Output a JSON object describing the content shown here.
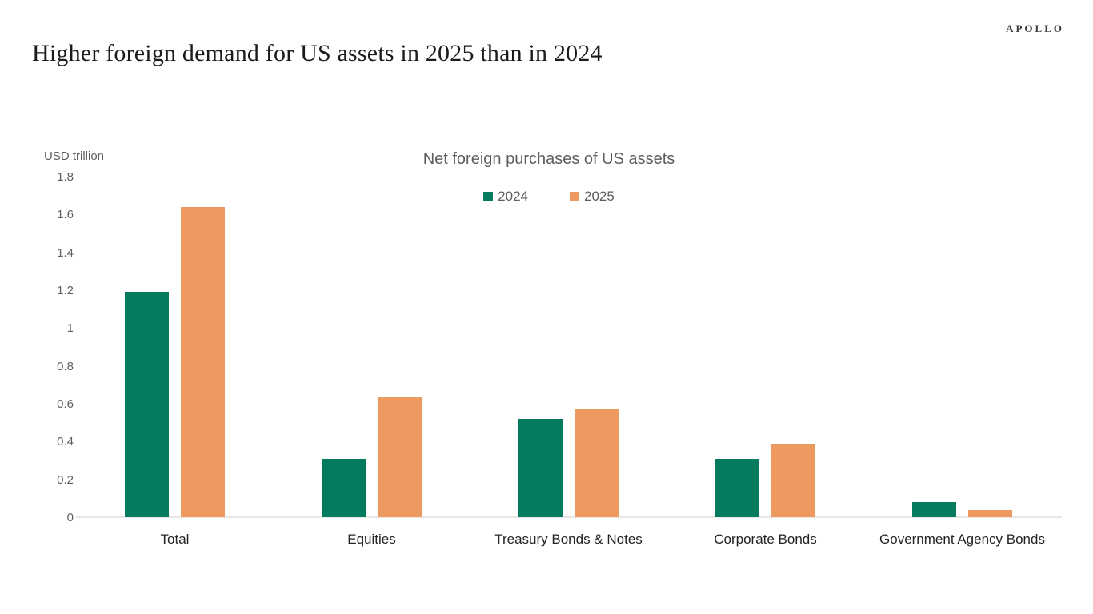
{
  "brand": {
    "logo": "APOLLO"
  },
  "header": {
    "title": "Higher foreign demand for US assets in 2025 than in 2024"
  },
  "chart_data": {
    "type": "bar",
    "title": "Net foreign purchases of US assets",
    "unit_label": "USD trillion",
    "categories": [
      "Total",
      "Equities",
      "Treasury Bonds & Notes",
      "Corporate Bonds",
      "Government Agency Bonds"
    ],
    "series": [
      {
        "name": "2024",
        "color": "#047a5e",
        "values": [
          1.19,
          0.31,
          0.52,
          0.31,
          0.08
        ]
      },
      {
        "name": "2025",
        "color": "#ec9a60",
        "values": [
          1.64,
          0.64,
          0.57,
          0.39,
          0.04
        ]
      }
    ],
    "ylim": [
      0,
      1.8
    ],
    "yticks": [
      "1.8",
      "1.6",
      "1.4",
      "1.2",
      "1",
      "0.8",
      "0.6",
      "0.4",
      "0.2",
      "0"
    ],
    "grid": false,
    "legend_position": "top",
    "axis_line_color": "#e7e7e7",
    "tick_label_color": "#605e5c",
    "category_label_color": "#252423"
  }
}
